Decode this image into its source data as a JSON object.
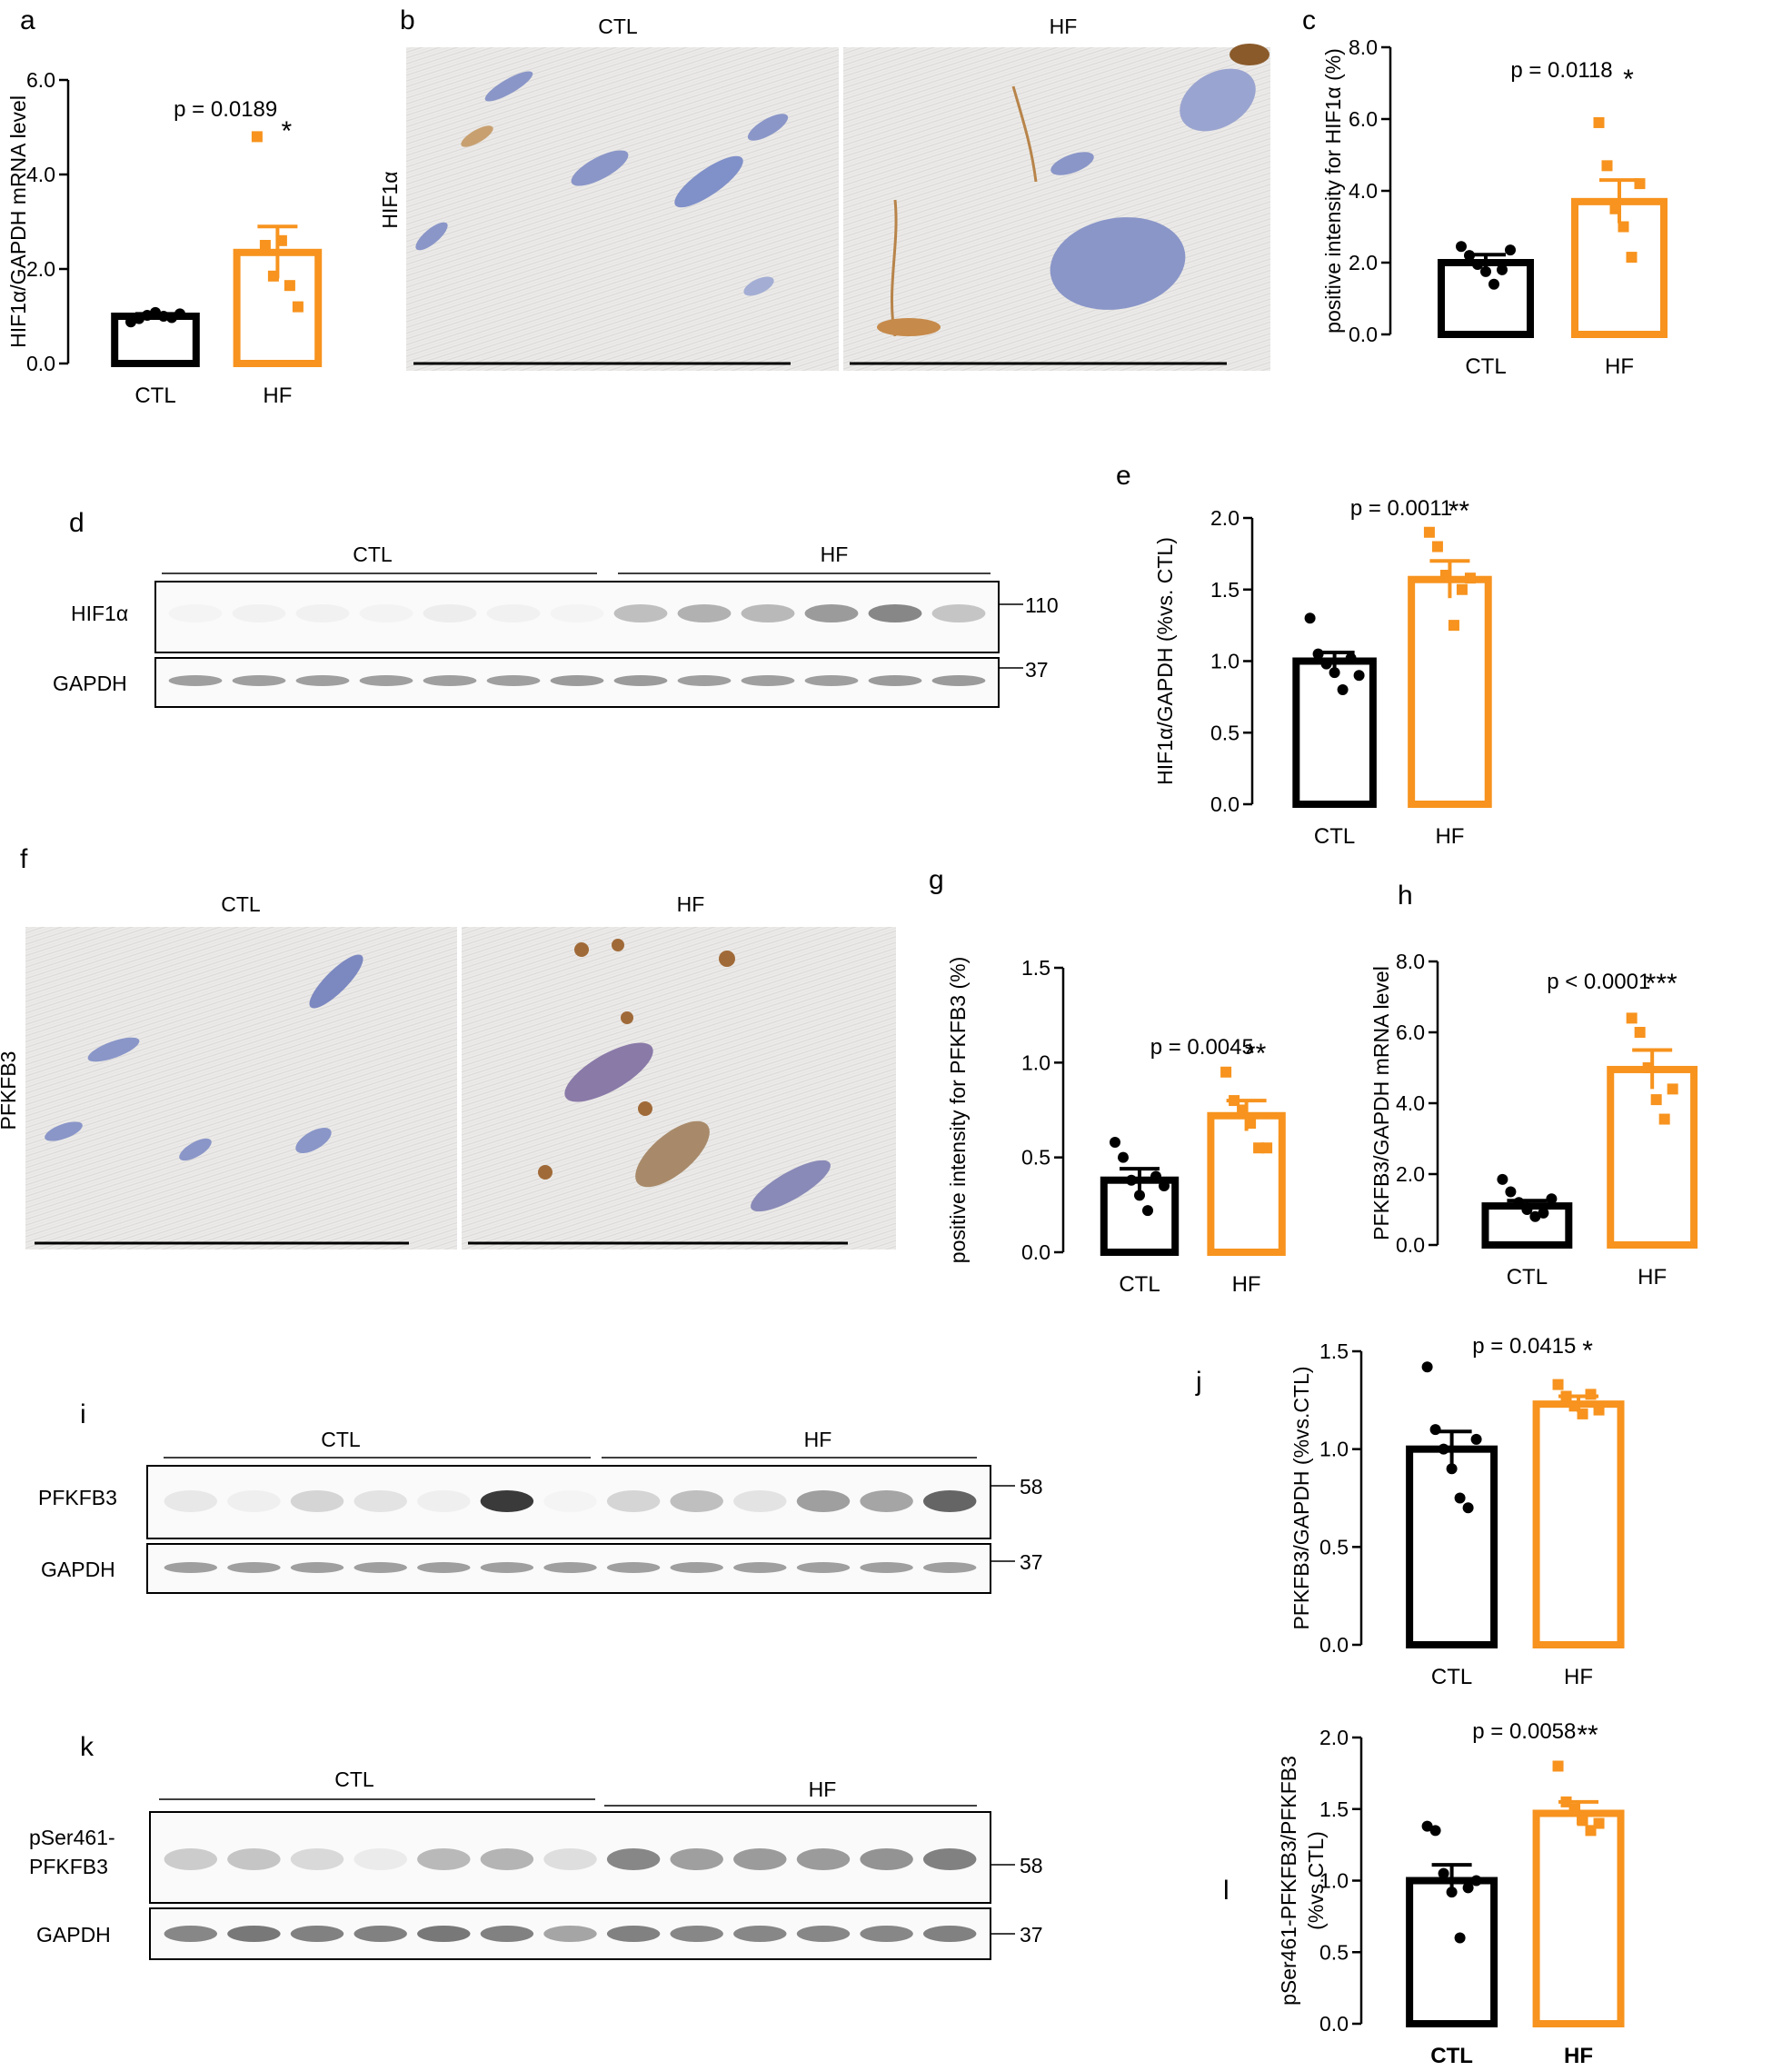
{
  "colors": {
    "ctl": "#000000",
    "hf": "#F7931E"
  },
  "panel_letters": {
    "a": "a",
    "b": "b",
    "c": "c",
    "d": "d",
    "e": "e",
    "f": "f",
    "g": "g",
    "h": "h",
    "i": "i",
    "j": "j",
    "k": "k",
    "l": "l"
  },
  "histology": {
    "b": {
      "col1": "CTL",
      "col2": "HF",
      "stain": "HIF1α"
    },
    "f": {
      "col1": "CTL",
      "col2": "HF",
      "stain": "PFKFB3"
    }
  },
  "blots": {
    "d": {
      "group1": "CTL",
      "group2": "HF",
      "rows": [
        {
          "label": "HIF1α",
          "marker": "110"
        },
        {
          "label": "GAPDH",
          "marker": "37"
        }
      ],
      "lane_intensity": [
        [
          0.05,
          0.08,
          0.08,
          0.06,
          0.14,
          0.08,
          0.05,
          0.45,
          0.52,
          0.48,
          0.62,
          0.7,
          0.42
        ],
        [
          0.6,
          0.6,
          0.6,
          0.6,
          0.6,
          0.6,
          0.62,
          0.62,
          0.6,
          0.6,
          0.6,
          0.62,
          0.62
        ]
      ]
    },
    "i": {
      "group1": "CTL",
      "group2": "HF",
      "rows": [
        {
          "label": "PFKFB3",
          "marker": "58"
        },
        {
          "label": "GAPDH",
          "marker": "37"
        }
      ],
      "lane_intensity": [
        [
          0.18,
          0.12,
          0.32,
          0.22,
          0.12,
          0.95,
          0.05,
          0.32,
          0.45,
          0.22,
          0.6,
          0.58,
          0.82
        ],
        [
          0.6,
          0.6,
          0.6,
          0.6,
          0.6,
          0.6,
          0.6,
          0.6,
          0.6,
          0.6,
          0.6,
          0.6,
          0.6
        ]
      ]
    },
    "k": {
      "group1": "CTL",
      "group2": "HF",
      "rows": [
        {
          "label": "pSer461-",
          "label2": "PFKFB3",
          "marker": "58"
        },
        {
          "label": "GAPDH",
          "marker": "37"
        }
      ],
      "lane_intensity": [
        [
          0.38,
          0.42,
          0.3,
          0.16,
          0.48,
          0.5,
          0.26,
          0.7,
          0.6,
          0.62,
          0.62,
          0.65,
          0.72
        ],
        [
          0.7,
          0.75,
          0.72,
          0.72,
          0.75,
          0.72,
          0.58,
          0.72,
          0.7,
          0.7,
          0.7,
          0.7,
          0.72
        ]
      ]
    }
  },
  "chart_data": [
    {
      "panel": "a",
      "type": "bar",
      "ylabel": "HIF1α/GAPDH mRNA level",
      "ylim": [
        0,
        6
      ],
      "yticks": [
        "0.0",
        "2.0",
        "4.0",
        "6.0"
      ],
      "categories": [
        "CTL",
        "HF"
      ],
      "values": [
        1.0,
        2.35
      ],
      "sem": [
        0.05,
        0.55
      ],
      "points": [
        [
          0.88,
          0.95,
          1.02,
          1.08,
          1.0,
          0.97,
          1.05
        ],
        [
          4.8,
          2.5,
          1.85,
          2.6,
          1.65,
          1.2
        ]
      ],
      "annotation": "p = 0.0189",
      "stars": "*"
    },
    {
      "panel": "c",
      "type": "bar",
      "ylabel": "positive intensity for HIF1α (%)",
      "ylim": [
        0,
        8
      ],
      "yticks": [
        "0.0",
        "2.0",
        "4.0",
        "6.0",
        "8.0"
      ],
      "categories": [
        "CTL",
        "HF"
      ],
      "values": [
        2.0,
        3.7
      ],
      "sem": [
        0.22,
        0.6
      ],
      "points": [
        [
          2.45,
          2.2,
          1.95,
          1.75,
          1.4,
          1.8,
          2.35
        ],
        [
          5.9,
          4.7,
          3.5,
          3.0,
          2.15,
          4.2
        ]
      ],
      "annotation": "p = 0.0118",
      "stars": "*"
    },
    {
      "panel": "e",
      "type": "bar",
      "ylabel": "HIF1α/GAPDH (%vs. CTL)",
      "ylim": [
        0,
        2
      ],
      "yticks": [
        "0.0",
        "0.5",
        "1.0",
        "1.5",
        "2.0"
      ],
      "categories": [
        "CTL",
        "HF"
      ],
      "values": [
        1.0,
        1.57
      ],
      "sem": [
        0.06,
        0.13
      ],
      "points": [
        [
          1.3,
          1.05,
          0.98,
          0.92,
          0.8,
          1.02,
          0.9
        ],
        [
          1.9,
          1.8,
          1.6,
          1.25,
          1.5,
          1.58
        ]
      ],
      "annotation": "p = 0.0011",
      "stars": "**"
    },
    {
      "panel": "g",
      "type": "bar",
      "ylabel": "positive intensity for PFKFB3 (%)",
      "ylim": [
        0,
        1.5
      ],
      "yticks": [
        "0.0",
        "0.5",
        "1.0",
        "1.5"
      ],
      "categories": [
        "CTL",
        "HF"
      ],
      "values": [
        0.38,
        0.72
      ],
      "sem": [
        0.06,
        0.08
      ],
      "points": [
        [
          0.58,
          0.5,
          0.38,
          0.3,
          0.22,
          0.4,
          0.35
        ],
        [
          0.95,
          0.8,
          0.75,
          0.68,
          0.55,
          0.55
        ]
      ],
      "annotation": "p = 0.0045",
      "stars": "**"
    },
    {
      "panel": "h",
      "type": "bar",
      "ylabel": "PFKFB3/GAPDH mRNA level",
      "ylim": [
        0,
        8
      ],
      "yticks": [
        "0.0",
        "2.0",
        "4.0",
        "6.0",
        "8.0"
      ],
      "categories": [
        "CTL",
        "HF"
      ],
      "values": [
        1.1,
        4.95
      ],
      "sem": [
        0.15,
        0.55
      ],
      "points": [
        [
          1.85,
          1.5,
          1.2,
          1.0,
          0.8,
          0.9,
          1.3
        ],
        [
          6.4,
          6.0,
          5.0,
          4.1,
          3.55,
          4.4
        ]
      ],
      "annotation": "p < 0.0001",
      "stars": "***"
    },
    {
      "panel": "j",
      "type": "bar",
      "ylabel": "PFKFB3/GAPDH (%vs.CTL)",
      "ylim": [
        0,
        1.5
      ],
      "yticks": [
        "0.0",
        "0.5",
        "1.0",
        "1.5"
      ],
      "categories": [
        "CTL",
        "HF"
      ],
      "values": [
        1.0,
        1.23
      ],
      "sem": [
        0.09,
        0.04
      ],
      "points": [
        [
          1.42,
          1.1,
          1.0,
          0.9,
          0.75,
          0.7,
          1.05
        ],
        [
          1.33,
          1.27,
          1.22,
          1.18,
          1.28,
          1.2
        ]
      ],
      "annotation": "p = 0.0415",
      "stars": "*"
    },
    {
      "panel": "l",
      "type": "bar",
      "ylabel": "pSer461-PFKFB3/PFKFB3",
      "ylabel2": "(%vs.CTL)",
      "ylim": [
        0,
        2
      ],
      "yticks": [
        "0.0",
        "0.5",
        "1.0",
        "1.5",
        "2.0"
      ],
      "categories": [
        "CTL",
        "HF"
      ],
      "values": [
        1.0,
        1.47
      ],
      "sem": [
        0.11,
        0.08
      ],
      "points": [
        [
          1.38,
          1.35,
          1.05,
          0.92,
          0.6,
          0.95,
          1.0
        ],
        [
          1.8,
          1.55,
          1.5,
          1.42,
          1.35,
          1.4
        ]
      ],
      "annotation": "p = 0.0058",
      "stars": "**",
      "bold_categories": true
    }
  ]
}
